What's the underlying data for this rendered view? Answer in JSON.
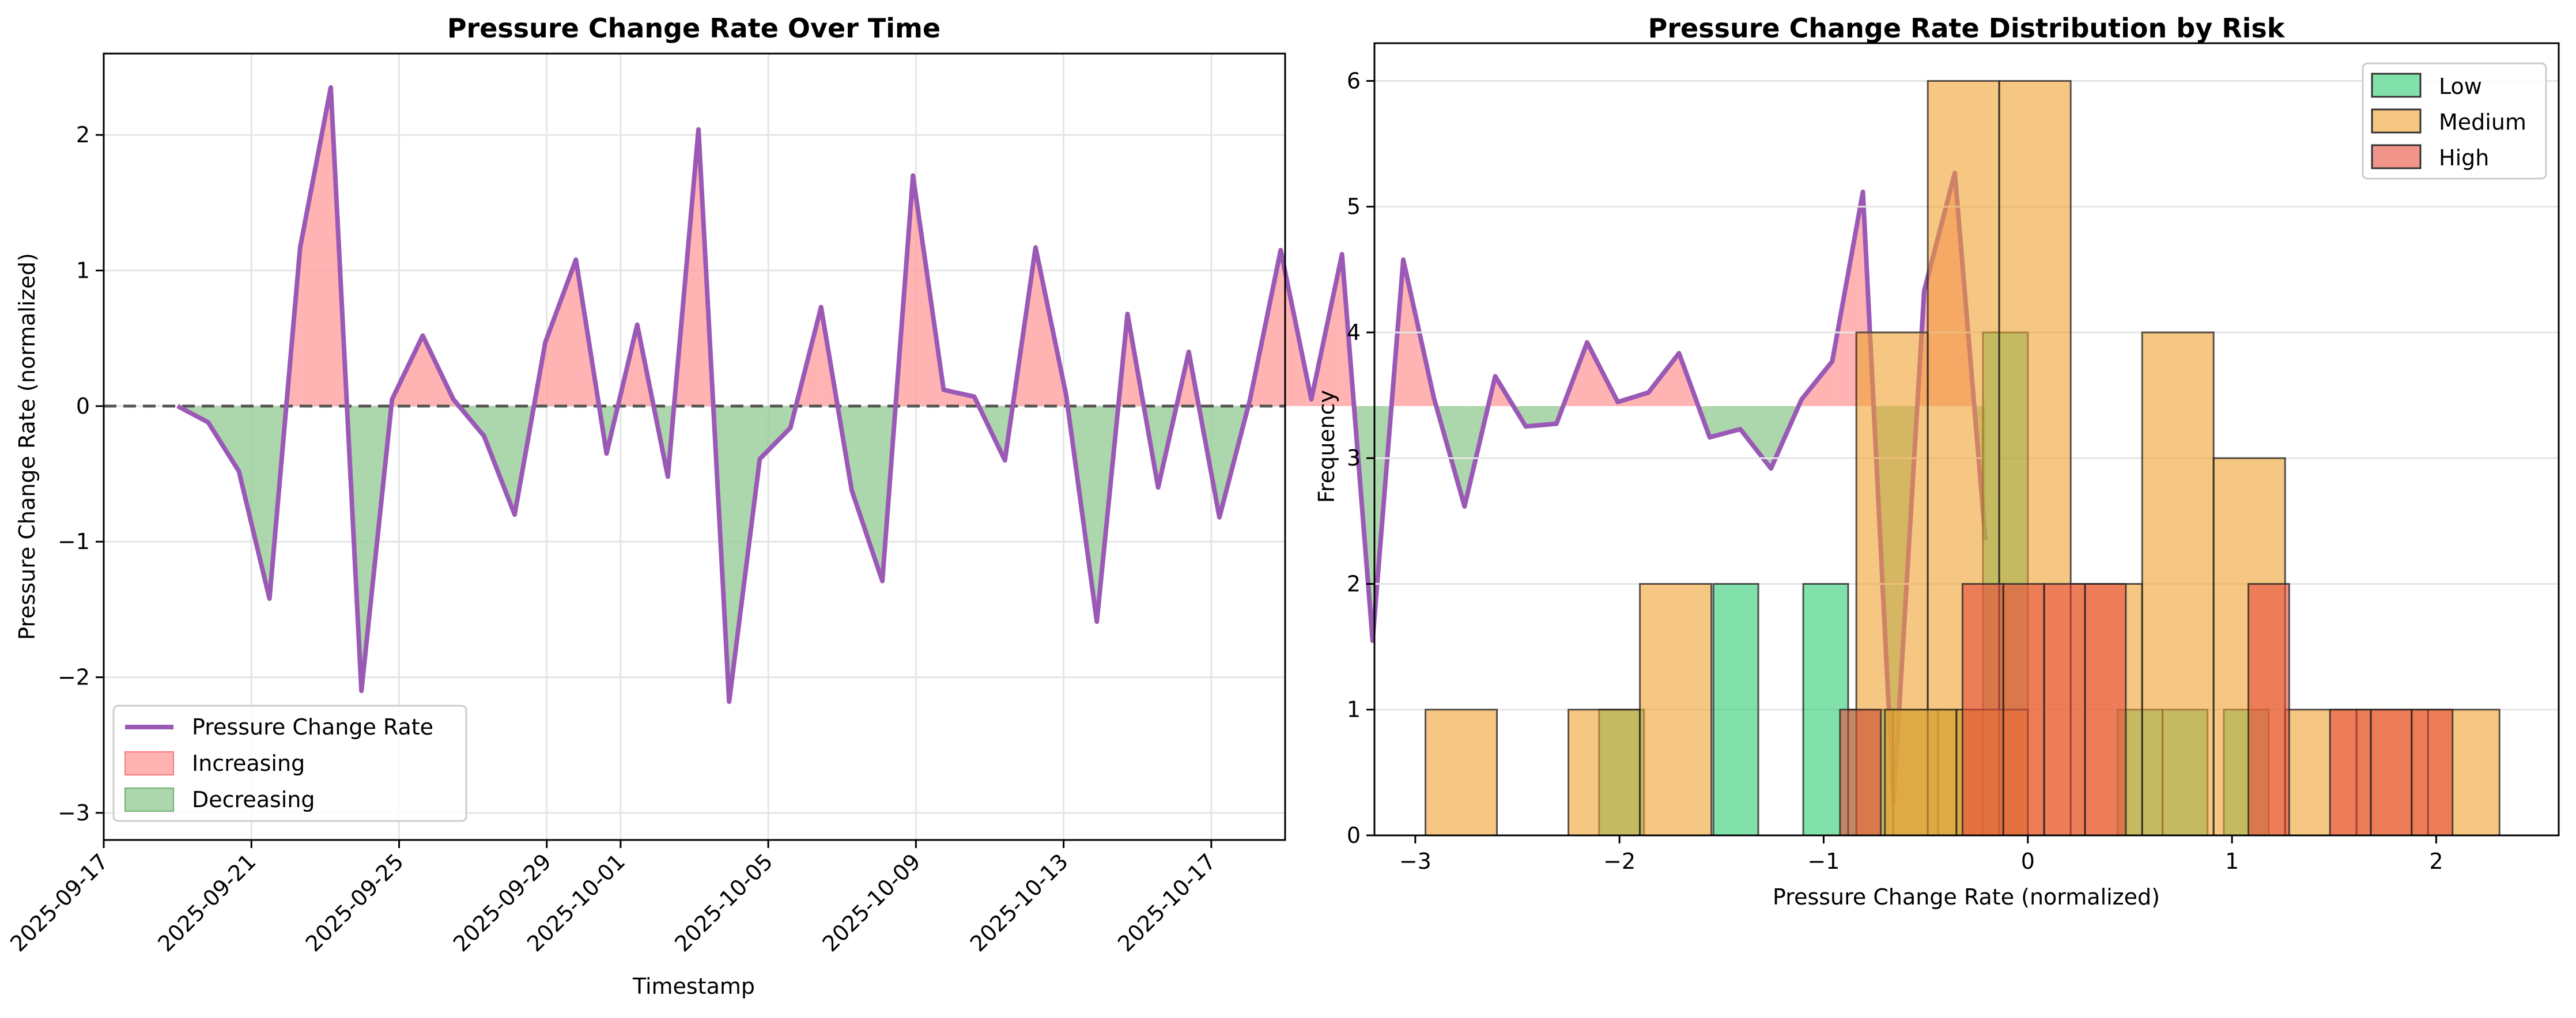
{
  "chart_data": [
    {
      "type": "line",
      "title": "Pressure Change Rate Over Time",
      "xlabel": "Timestamp",
      "ylabel": "Pressure Change Rate (normalized)",
      "x_start": "2025-09-19",
      "x_step_days": 0.83,
      "x_ticks": [
        "2025-09-17",
        "2025-09-21",
        "2025-09-25",
        "2025-09-29",
        "2025-10-01",
        "2025-10-05",
        "2025-10-09",
        "2025-10-13",
        "2025-10-17"
      ],
      "y_ticks": [
        "−3",
        "−2",
        "−1",
        "0",
        "1",
        "2"
      ],
      "ylim": [
        -3.2,
        2.6
      ],
      "xlim": [
        "2025-09-17",
        "2025-10-19"
      ],
      "grid": true,
      "legend_position": "lower-left",
      "baseline": 0,
      "series": [
        {
          "name": "Pressure Change Rate",
          "color": "#9b59b6",
          "values": [
            0.0,
            -0.12,
            -0.48,
            -1.42,
            1.17,
            2.35,
            -2.1,
            0.05,
            0.52,
            0.05,
            -0.22,
            -0.8,
            0.47,
            1.08,
            -0.35,
            0.6,
            -0.52,
            2.04,
            -2.18,
            -0.39,
            -0.16,
            0.73,
            -0.62,
            -1.29,
            1.7,
            0.12,
            0.07,
            -0.4,
            1.17,
            0.08,
            -1.59,
            0.68,
            -0.6,
            0.4,
            -0.82,
            0.05,
            1.15,
            0.05,
            1.12,
            -1.73,
            1.08,
            0.06,
            -0.74,
            0.22,
            -0.15,
            -0.13,
            0.47,
            0.03,
            0.1,
            0.39,
            -0.23,
            -0.17,
            -0.46,
            0.05,
            0.33,
            1.58,
            -2.93,
            0.85,
            1.72,
            -0.99
          ]
        }
      ],
      "fill_legend": [
        {
          "name": "Increasing",
          "color": "#ff9999"
        },
        {
          "name": "Decreasing",
          "color": "#90c990"
        }
      ]
    },
    {
      "type": "bar",
      "title": "Pressure Change Rate Distribution by Risk",
      "xlabel": "Pressure Change Rate (normalized)",
      "ylabel": "Frequency",
      "xlim": [
        -3.2,
        2.6
      ],
      "ylim": [
        0,
        6.3
      ],
      "x_ticks": [
        "−3",
        "−2",
        "−1",
        "0",
        "1",
        "2"
      ],
      "y_ticks": [
        "0",
        "1",
        "2",
        "3",
        "4",
        "5",
        "6"
      ],
      "grid": true,
      "legend_position": "top-right",
      "series": [
        {
          "name": "Low",
          "color": "#2ecc71",
          "bins": [
            [
              -2.1,
              -1.88,
              1
            ],
            [
              -1.54,
              -1.32,
              2
            ],
            [
              -1.1,
              -0.88,
              2
            ],
            [
              -0.88,
              -0.66,
              1
            ],
            [
              -0.66,
              -0.44,
              1
            ],
            [
              -0.44,
              -0.22,
              1
            ],
            [
              -0.22,
              0.0,
              4
            ],
            [
              0.44,
              0.66,
              1
            ],
            [
              0.66,
              0.88,
              1
            ],
            [
              0.96,
              1.18,
              1
            ]
          ]
        },
        {
          "name": "Medium",
          "color": "#f0a030",
          "bins": [
            [
              -2.95,
              -2.6,
              1
            ],
            [
              -2.25,
              -1.9,
              1
            ],
            [
              -1.9,
              -1.55,
              2
            ],
            [
              -0.84,
              -0.49,
              4
            ],
            [
              -0.49,
              -0.14,
              6
            ],
            [
              -0.14,
              0.21,
              6
            ],
            [
              -0.35,
              0.0,
              1
            ],
            [
              0.21,
              0.56,
              2
            ],
            [
              0.56,
              0.91,
              4
            ],
            [
              0.91,
              1.26,
              3
            ],
            [
              1.26,
              1.61,
              1
            ],
            [
              1.61,
              1.96,
              1
            ],
            [
              1.96,
              2.31,
              1
            ],
            [
              -0.7,
              -0.35,
              1
            ]
          ]
        },
        {
          "name": "High",
          "color": "#e74c3c",
          "bins": [
            [
              -0.92,
              -0.72,
              1
            ],
            [
              -0.32,
              -0.12,
              2
            ],
            [
              -0.12,
              0.08,
              2
            ],
            [
              0.08,
              0.28,
              2
            ],
            [
              0.28,
              0.48,
              2
            ],
            [
              1.08,
              1.28,
              2
            ],
            [
              1.48,
              1.68,
              1
            ],
            [
              1.68,
              1.88,
              1
            ],
            [
              1.88,
              2.08,
              1
            ]
          ]
        }
      ]
    }
  ]
}
